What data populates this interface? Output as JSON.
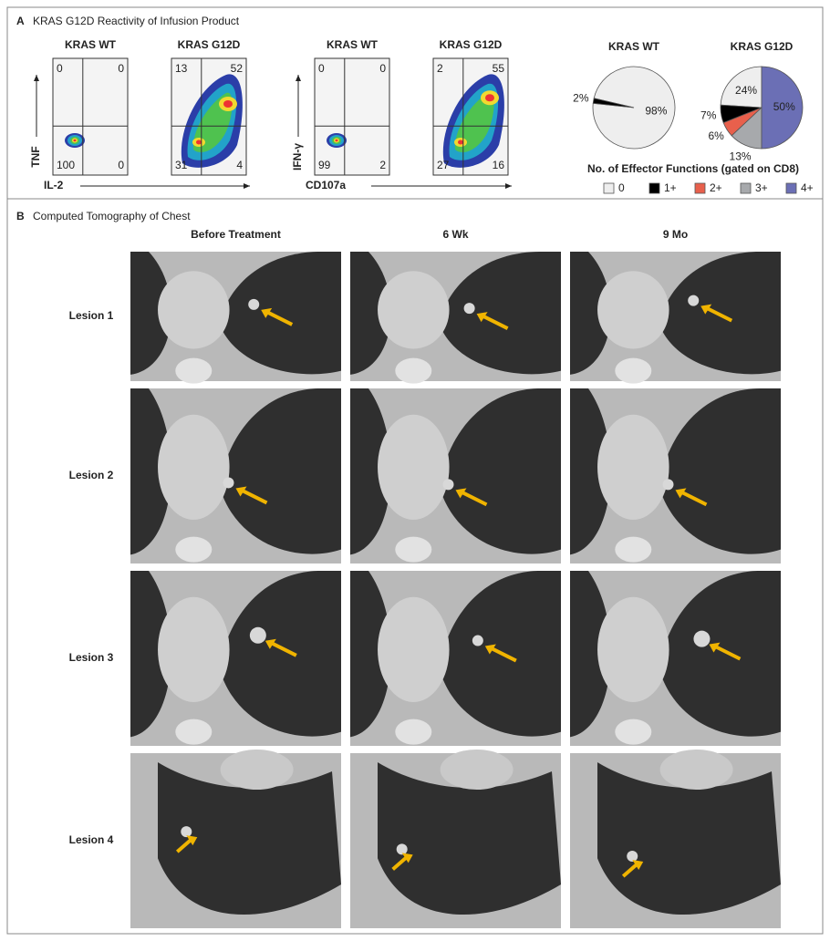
{
  "panel_a": {
    "label": "A",
    "title": "KRAS G12D Reactivity of Infusion Product",
    "flow_groups": [
      {
        "y_label": "TNF",
        "x_label": "IL-2",
        "plots": [
          {
            "title": "KRAS WT",
            "quadrants": [
              0,
              0,
              100,
              0
            ]
          },
          {
            "title": "KRAS G12D",
            "quadrants": [
              13,
              52,
              31,
              4
            ]
          }
        ]
      },
      {
        "y_label": "IFN-γ",
        "x_label": "CD107a",
        "plots": [
          {
            "title": "KRAS WT",
            "quadrants": [
              0,
              0,
              99,
              2
            ]
          },
          {
            "title": "KRAS G12D",
            "quadrants": [
              2,
              55,
              27,
              16
            ]
          }
        ]
      }
    ],
    "legend_title": "No. of Effector Functions (gated on CD8)"
  },
  "chart_data": [
    {
      "type": "pie",
      "title": "KRAS WT",
      "categories": [
        "0",
        "1+"
      ],
      "values": [
        98,
        2
      ],
      "value_labels": [
        "98%",
        "2%"
      ],
      "colors": [
        "#eeeeee",
        "#000000"
      ]
    },
    {
      "type": "pie",
      "title": "KRAS G12D",
      "categories": [
        "0",
        "1+",
        "2+",
        "3+",
        "4+"
      ],
      "values": [
        24,
        7,
        6,
        13,
        50
      ],
      "value_labels": [
        "24%",
        "7%",
        "6%",
        "13%",
        "50%"
      ],
      "colors": [
        "#eeeeee",
        "#000000",
        "#e8604c",
        "#a7a9ac",
        "#6b6fb5"
      ]
    }
  ],
  "panel_b": {
    "label": "B",
    "title": "Computed Tomography of Chest",
    "columns": [
      "Before Treatment",
      "6 Wk",
      "9 Mo"
    ],
    "rows": [
      "Lesion 1",
      "Lesion 2",
      "Lesion 3",
      "Lesion 4"
    ]
  }
}
